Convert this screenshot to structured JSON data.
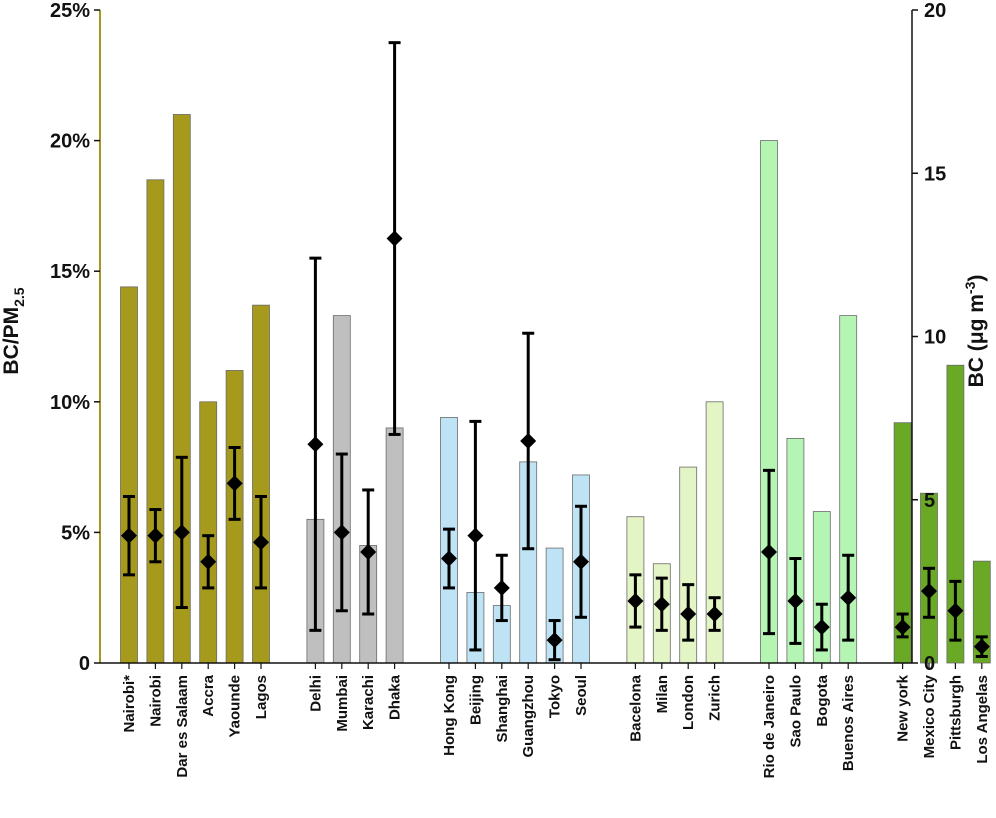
{
  "chart_data": {
    "type": "bar",
    "title": "",
    "ylabel_left": {
      "main": "BC/PM",
      "sub": "2.5"
    },
    "ylabel_right": {
      "main": "BC (μg m",
      "sup": "-3",
      "end": ")"
    },
    "y_left_range": [
      0,
      25
    ],
    "y_left_ticks": [
      "0",
      "5%",
      "10%",
      "15%",
      "20%",
      "25%"
    ],
    "y_right_range": [
      0,
      20
    ],
    "y_right_ticks": [
      "0",
      "5",
      "10",
      "15",
      "20"
    ],
    "group_colors": {
      "africa": "#a59a1c",
      "south_asia": "#bfbfbf",
      "east_asia": "#bde3f5",
      "europe": "#e3f4c5",
      "south_america": "#b4f5b4",
      "north_america": "#6aa925"
    },
    "categories": [
      {
        "label": "Nairobi*",
        "group": "africa",
        "ratio_pct": 14.4,
        "bc": 3.9,
        "bc_low": 2.7,
        "bc_high": 5.1
      },
      {
        "label": "Nairobi",
        "group": "africa",
        "ratio_pct": 18.5,
        "bc": 3.9,
        "bc_low": 3.1,
        "bc_high": 4.7
      },
      {
        "label": "Dar es Salaam",
        "group": "africa",
        "ratio_pct": 21.0,
        "bc": 4.0,
        "bc_low": 1.7,
        "bc_high": 6.3
      },
      {
        "label": "Accra",
        "group": "africa",
        "ratio_pct": 10.0,
        "bc": 3.1,
        "bc_low": 2.3,
        "bc_high": 3.9
      },
      {
        "label": "Yaounde",
        "group": "africa",
        "ratio_pct": 11.2,
        "bc": 5.5,
        "bc_low": 4.4,
        "bc_high": 6.6
      },
      {
        "label": "Lagos",
        "group": "africa",
        "ratio_pct": 13.7,
        "bc": 3.7,
        "bc_low": 2.3,
        "bc_high": 5.1
      },
      {
        "label": "Delhi",
        "group": "south_asia",
        "ratio_pct": 5.5,
        "bc": 6.7,
        "bc_low": 1.0,
        "bc_high": 12.4
      },
      {
        "label": "Mumbai",
        "group": "south_asia",
        "ratio_pct": 13.3,
        "bc": 4.0,
        "bc_low": 1.6,
        "bc_high": 6.4
      },
      {
        "label": "Karachi",
        "group": "south_asia",
        "ratio_pct": 4.5,
        "bc": 3.4,
        "bc_low": 1.5,
        "bc_high": 5.3
      },
      {
        "label": "Dhaka",
        "group": "south_asia",
        "ratio_pct": 9.0,
        "bc": 13.0,
        "bc_low": 7.0,
        "bc_high": 19.0
      },
      {
        "label": "Hong Kong",
        "group": "east_asia",
        "ratio_pct": 9.4,
        "bc": 3.2,
        "bc_low": 2.3,
        "bc_high": 4.1
      },
      {
        "label": "Beijing",
        "group": "east_asia",
        "ratio_pct": 2.7,
        "bc": 3.9,
        "bc_low": 0.4,
        "bc_high": 7.4
      },
      {
        "label": "Shanghai",
        "group": "east_asia",
        "ratio_pct": 2.2,
        "bc": 2.3,
        "bc_low": 1.3,
        "bc_high": 3.3
      },
      {
        "label": "Guangzhou",
        "group": "east_asia",
        "ratio_pct": 7.7,
        "bc": 6.8,
        "bc_low": 3.5,
        "bc_high": 10.1
      },
      {
        "label": "Tokyo",
        "group": "east_asia",
        "ratio_pct": 4.4,
        "bc": 0.7,
        "bc_low": 0.1,
        "bc_high": 1.3
      },
      {
        "label": "Seoul",
        "group": "east_asia",
        "ratio_pct": 7.2,
        "bc": 3.1,
        "bc_low": 1.4,
        "bc_high": 4.8
      },
      {
        "label": "Bacelona",
        "group": "europe",
        "ratio_pct": 5.6,
        "bc": 1.9,
        "bc_low": 1.1,
        "bc_high": 2.7
      },
      {
        "label": "Milan",
        "group": "europe",
        "ratio_pct": 3.8,
        "bc": 1.8,
        "bc_low": 1.0,
        "bc_high": 2.6
      },
      {
        "label": "London",
        "group": "europe",
        "ratio_pct": 7.5,
        "bc": 1.5,
        "bc_low": 0.7,
        "bc_high": 2.4
      },
      {
        "label": "Zurich",
        "group": "europe",
        "ratio_pct": 10.0,
        "bc": 1.5,
        "bc_low": 1.0,
        "bc_high": 2.0
      },
      {
        "label": "Rio de Janeiro",
        "group": "south_america",
        "ratio_pct": 20.0,
        "bc": 3.4,
        "bc_low": 0.9,
        "bc_high": 5.9
      },
      {
        "label": "Sao Paulo",
        "group": "south_america",
        "ratio_pct": 8.6,
        "bc": 1.9,
        "bc_low": 0.6,
        "bc_high": 3.2
      },
      {
        "label": "Bogota",
        "group": "south_america",
        "ratio_pct": 5.8,
        "bc": 1.1,
        "bc_low": 0.4,
        "bc_high": 1.8
      },
      {
        "label": "Buenos Aires",
        "group": "south_america",
        "ratio_pct": 13.3,
        "bc": 2.0,
        "bc_low": 0.7,
        "bc_high": 3.3
      },
      {
        "label": "New york",
        "group": "north_america",
        "ratio_pct": 9.2,
        "bc": 1.1,
        "bc_low": 0.8,
        "bc_high": 1.5
      },
      {
        "label": "Mexico City",
        "group": "north_america",
        "ratio_pct": 6.5,
        "bc": 2.2,
        "bc_low": 1.4,
        "bc_high": 2.9
      },
      {
        "label": "Pittsburgh",
        "group": "north_america",
        "ratio_pct": 11.4,
        "bc": 1.6,
        "bc_low": 0.7,
        "bc_high": 2.5
      },
      {
        "label": "Los Angelas",
        "group": "north_america",
        "ratio_pct": 3.9,
        "bc": 0.5,
        "bc_low": 0.2,
        "bc_high": 0.8
      }
    ]
  }
}
